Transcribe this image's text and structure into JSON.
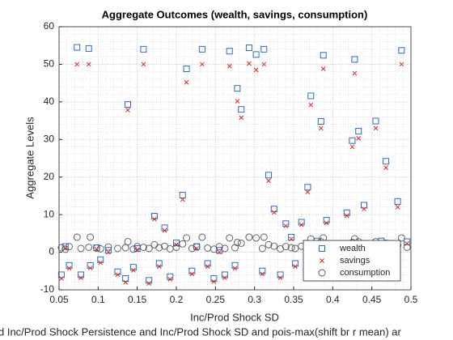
{
  "chart_data": {
    "type": "scatter",
    "title": "Aggregate Outcomes (wealth, savings, consumption)",
    "x_label": "Inc/Prod Shock SD",
    "y_label": "Aggregate Levels",
    "footer": "d Inc/Prod Shock Persistence and Inc/Prod Shock SD and pois-max(shift br r mean) ar",
    "xlim": [
      0.05,
      0.5
    ],
    "xticks": [
      0.05,
      0.1,
      0.15,
      0.2,
      0.25,
      0.3,
      0.35,
      0.4,
      0.45,
      0.5
    ],
    "ylim": [
      -10,
      60
    ],
    "yticks": [
      -10,
      0,
      10,
      20,
      30,
      40,
      50,
      60
    ],
    "grid": true,
    "minor_grid": true,
    "legend": "southeast",
    "x": [
      0.053,
      0.058,
      0.063,
      0.073,
      0.078,
      0.088,
      0.09,
      0.098,
      0.103,
      0.113,
      0.125,
      0.135,
      0.138,
      0.145,
      0.15,
      0.158,
      0.165,
      0.172,
      0.178,
      0.185,
      0.192,
      0.2,
      0.208,
      0.213,
      0.22,
      0.226,
      0.233,
      0.24,
      0.248,
      0.255,
      0.262,
      0.268,
      0.275,
      0.278,
      0.283,
      0.293,
      0.302,
      0.31,
      0.312,
      0.318,
      0.325,
      0.333,
      0.34,
      0.347,
      0.352,
      0.36,
      0.368,
      0.372,
      0.38,
      0.385,
      0.388,
      0.392,
      0.4,
      0.41,
      0.418,
      0.425,
      0.428,
      0.433,
      0.44,
      0.448,
      0.455,
      0.462,
      0.468,
      0.475,
      0.483,
      0.488,
      0.495
    ],
    "series": [
      {
        "name": "wealth",
        "color": "#2f6db5",
        "marker": "square",
        "values": [
          -6,
          1.5,
          -3.5,
          54.5,
          -6,
          54.2,
          -3.5,
          1.2,
          -2,
          0.5,
          -5.2,
          -7,
          39.3,
          -4,
          1,
          54,
          -7.5,
          9.6,
          -3,
          6.5,
          -6.5,
          2.5,
          15.2,
          48.8,
          -5,
          1.5,
          54,
          -3,
          -7,
          0.5,
          -6,
          53.5,
          -3.5,
          43.6,
          38,
          54.4,
          52.6,
          -5,
          54,
          20.5,
          11.5,
          -6,
          7.6,
          4,
          -3,
          8,
          17.3,
          41.6,
          3,
          34.8,
          52.4,
          8.5,
          -2,
          -5,
          10.5,
          29.7,
          51.3,
          32.2,
          12.5,
          -1,
          34.9,
          3,
          24.2,
          -2,
          13.5,
          53.7,
          2.8
        ]
      },
      {
        "name": "savings",
        "color": "#d62728",
        "marker": "x",
        "values": [
          -7,
          1,
          -4.3,
          50,
          -6.8,
          50,
          -4.2,
          0.8,
          -2.8,
          0,
          -6,
          -8,
          37.8,
          -4.8,
          0.6,
          50,
          -8.3,
          8.8,
          -3.8,
          5.8,
          -7.2,
          2,
          14,
          45.2,
          -5.8,
          1,
          50,
          -3.8,
          -7.8,
          0,
          -6.8,
          49.5,
          -4.3,
          40.2,
          35.8,
          50.2,
          48.5,
          -5.8,
          50,
          19,
          10.6,
          -6.8,
          7,
          3.5,
          -3.8,
          7.3,
          16,
          39.2,
          2.5,
          33,
          48.8,
          7.8,
          -2.8,
          -5.8,
          9.7,
          28,
          47.6,
          30.3,
          11.5,
          -1.7,
          33,
          2.5,
          22.5,
          -2.8,
          12,
          50,
          2.3
        ]
      },
      {
        "name": "consumption",
        "color": "#555555",
        "marker": "circle",
        "values": [
          1.2,
          0.8,
          1.5,
          4,
          1,
          1.3,
          4,
          1.1,
          0.9,
          1.4,
          1,
          1.2,
          2.8,
          0.8,
          1.5,
          1.3,
          1,
          2,
          1.2,
          1.6,
          0.9,
          1.3,
          2.2,
          3.8,
          1,
          1.4,
          4,
          1.1,
          0.8,
          1.5,
          1,
          3.8,
          1.2,
          2.6,
          2.4,
          4,
          3.8,
          1,
          4,
          2,
          1.6,
          0.9,
          1.5,
          1.2,
          1,
          1.6,
          2.2,
          3.5,
          1.2,
          2.8,
          3.8,
          1.5,
          1,
          0.9,
          1.8,
          2.6,
          3.6,
          2.8,
          1.6,
          1,
          2.8,
          1.2,
          2.4,
          1,
          1.8,
          3.8,
          1.3
        ]
      }
    ]
  }
}
